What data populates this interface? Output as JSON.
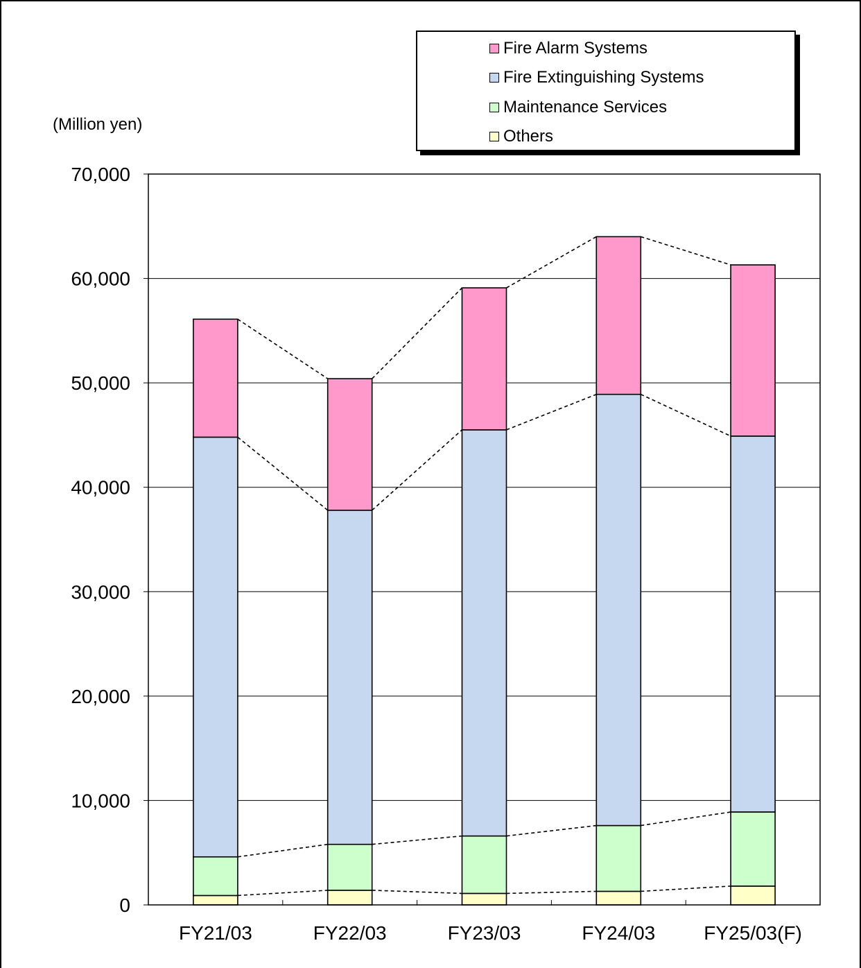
{
  "chart_data": {
    "type": "bar",
    "stacked": true,
    "unit_label": "(Million yen)",
    "categories": [
      "FY21/03",
      "FY22/03",
      "FY23/03",
      "FY24/03",
      "FY25/03(F)"
    ],
    "series": [
      {
        "name": "Others",
        "color": "#FFFFC8",
        "values": [
          900,
          1400,
          1100,
          1300,
          1800
        ]
      },
      {
        "name": "Maintenance Services",
        "color": "#CCFFCC",
        "values": [
          3700,
          4400,
          5500,
          6300,
          7100
        ]
      },
      {
        "name": "Fire Extinguishing Systems",
        "color": "#C6D7F0",
        "values": [
          40200,
          32000,
          38900,
          41300,
          36000
        ]
      },
      {
        "name": "Fire Alarm Systems",
        "color": "#FF99CC",
        "values": [
          11300,
          12600,
          13600,
          15100,
          16400
        ]
      }
    ],
    "legend_order": [
      "Fire Alarm Systems",
      "Fire Extinguishing Systems",
      "Maintenance Services",
      "Others"
    ],
    "ylim": [
      0,
      70000
    ],
    "yticks": [
      0,
      10000,
      20000,
      30000,
      40000,
      50000,
      60000,
      70000
    ],
    "ytick_labels": [
      "0",
      "10,000",
      "20,000",
      "30,000",
      "40,000",
      "50,000",
      "60,000",
      "70,000"
    ],
    "grid": true,
    "series_lines": "dashed",
    "legend_position": "top-right"
  }
}
